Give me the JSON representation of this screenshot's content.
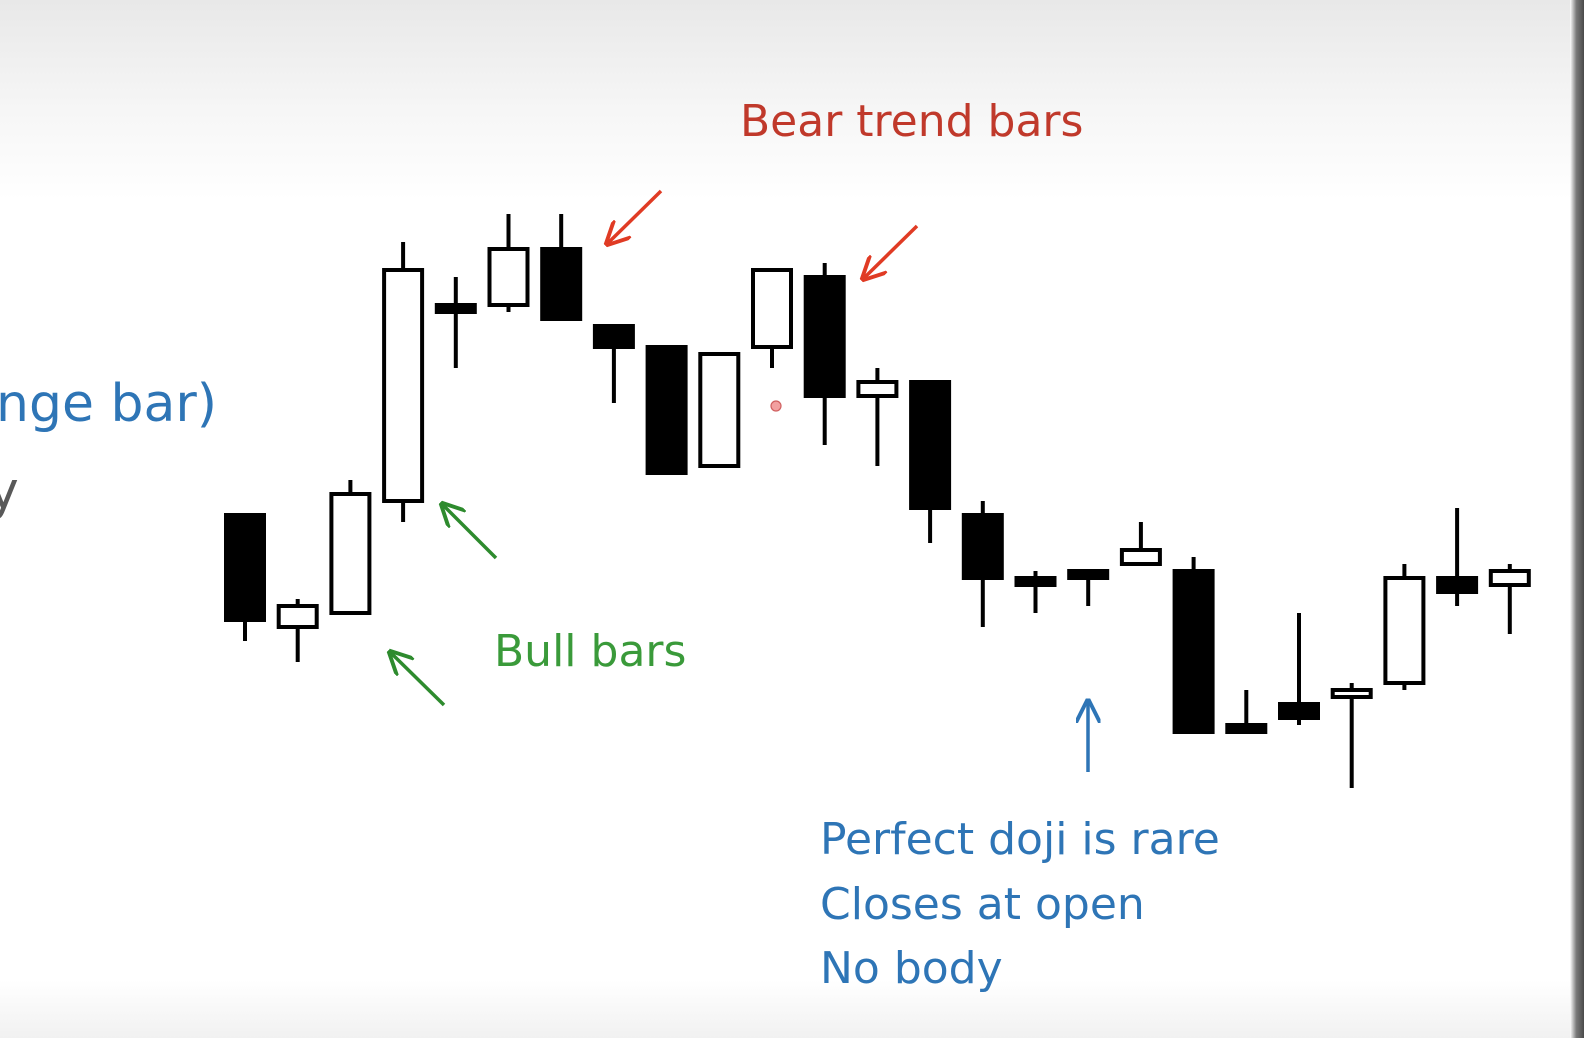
{
  "slide": {
    "partial_title": "nge bar)",
    "partial_gray": "y"
  },
  "annotations": {
    "bear": "Bear trend bars",
    "bull": "Bull bars",
    "doji_lines": [
      "Perfect doji is rare",
      "Closes at open",
      "No body"
    ]
  },
  "colors": {
    "bear_annotation": "#c0392b",
    "bull_annotation": "#3a9a3a",
    "doji_annotation": "#2e75b6",
    "bear_body": "#000000",
    "bull_body": "#ffffff"
  },
  "chart_data": {
    "type": "candlestick",
    "title": "",
    "xlabel": "",
    "ylabel": "",
    "grid": false,
    "axes_visible": false,
    "ylim": [
      0,
      100
    ],
    "note": "unitless price levels read relative to the figure (higher = higher price)",
    "bars": [
      {
        "open": 55,
        "close": 40,
        "high": 55,
        "low": 37
      },
      {
        "open": 39,
        "close": 42,
        "high": 43,
        "low": 34
      },
      {
        "open": 41,
        "close": 58,
        "high": 60,
        "low": 41
      },
      {
        "open": 57,
        "close": 90,
        "high": 94,
        "low": 54
      },
      {
        "open": 85,
        "close": 84,
        "high": 89,
        "low": 76
      },
      {
        "open": 85,
        "close": 93,
        "high": 98,
        "low": 84
      },
      {
        "open": 93,
        "close": 83,
        "high": 98,
        "low": 83
      },
      {
        "open": 82,
        "close": 79,
        "high": 82,
        "low": 71
      },
      {
        "open": 79,
        "close": 61,
        "high": 79,
        "low": 61
      },
      {
        "open": 62,
        "close": 78,
        "high": 78,
        "low": 62
      },
      {
        "open": 79,
        "close": 90,
        "high": 90,
        "low": 76
      },
      {
        "open": 89,
        "close": 72,
        "high": 91,
        "low": 65
      },
      {
        "open": 72,
        "close": 74,
        "high": 76,
        "low": 62
      },
      {
        "open": 74,
        "close": 56,
        "high": 74,
        "low": 51
      },
      {
        "open": 55,
        "close": 46,
        "high": 57,
        "low": 39
      },
      {
        "open": 46,
        "close": 45,
        "high": 47,
        "low": 41
      },
      {
        "open": 47,
        "close": 46,
        "high": 47,
        "low": 42
      },
      {
        "open": 48,
        "close": 50,
        "high": 54,
        "low": 48
      },
      {
        "open": 47,
        "close": 24,
        "high": 49,
        "low": 24
      },
      {
        "open": 25,
        "close": 24,
        "high": 30,
        "low": 24
      },
      {
        "open": 28,
        "close": 26,
        "high": 41,
        "low": 25
      },
      {
        "open": 29,
        "close": 30,
        "high": 31,
        "low": 16
      },
      {
        "open": 31,
        "close": 46,
        "high": 48,
        "low": 30
      },
      {
        "open": 46,
        "close": 44,
        "high": 56,
        "low": 42
      },
      {
        "open": 45,
        "close": 47,
        "high": 48,
        "low": 38
      }
    ]
  }
}
